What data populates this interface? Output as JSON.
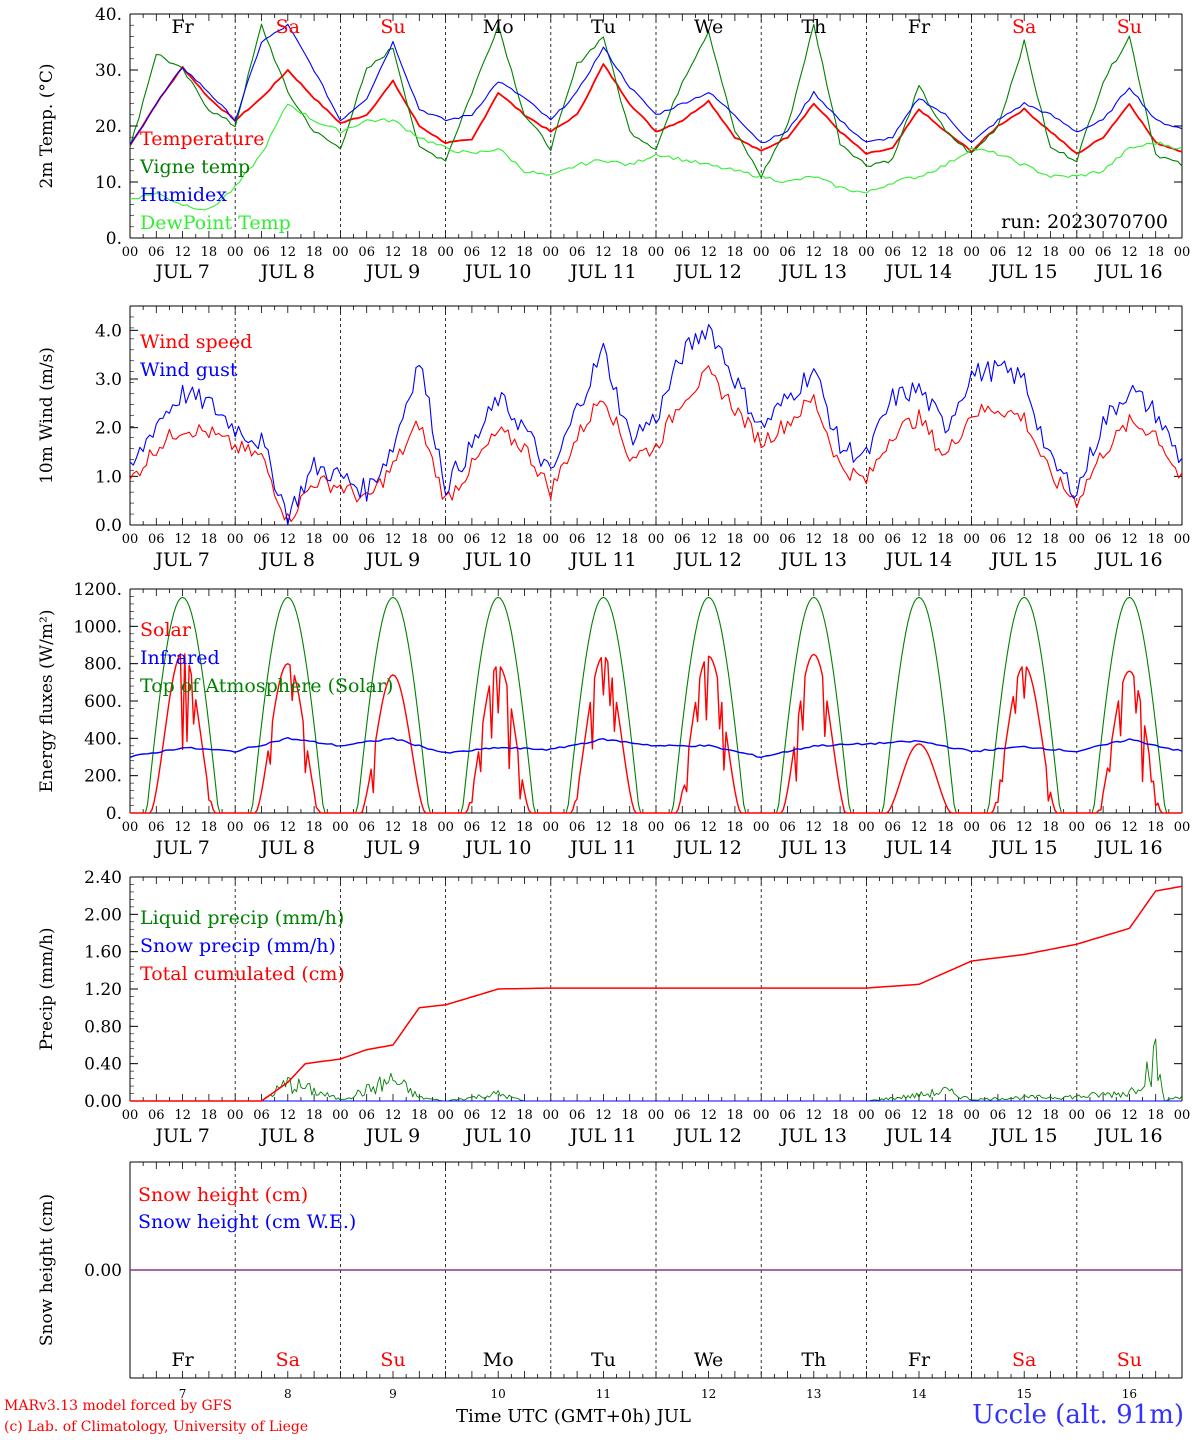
{
  "colors": {
    "red": "#ff0000",
    "green": "#008000",
    "blue": "#0000ff",
    "lightgreen": "#33ee33",
    "purple": "#6633aa",
    "station": "#3333ff"
  },
  "days": {
    "weekday": [
      "Fr",
      "Sa",
      "Su",
      "Mo",
      "Tu",
      "We",
      "Th",
      "Fr",
      "Sa",
      "Su"
    ],
    "weekday_colors": [
      "black",
      "red",
      "red",
      "black",
      "black",
      "black",
      "black",
      "black",
      "red",
      "red"
    ],
    "date_labels": [
      "JUL  7",
      "JUL  8",
      "JUL  9",
      "JUL 10",
      "JUL 11",
      "JUL 12",
      "JUL 13",
      "JUL 14",
      "JUL 15",
      "JUL 16"
    ],
    "day_numbers": [
      "7",
      "8",
      "9",
      "10",
      "11",
      "12",
      "13",
      "14",
      "15",
      "16"
    ],
    "hour_ticks": [
      "00",
      "06",
      "12",
      "18"
    ],
    "end_tick": "00"
  },
  "chart_data": [
    {
      "type": "line",
      "ylabel": "2m Temp. (°C)",
      "ylim": [
        0,
        40
      ],
      "yticks": [
        "0.",
        "10.",
        "20.",
        "30.",
        "40."
      ],
      "annotation": "run: 2023070700",
      "legend": [
        "Temperature",
        "Vigne temp",
        "Humidex",
        "DewPoint Temp"
      ],
      "x_unit": "hours since JUL 7 00 UTC",
      "series": [
        {
          "name": "Temperature",
          "color": "red",
          "x": [
            0,
            6,
            12,
            18,
            24,
            30,
            36,
            42,
            48,
            54,
            60,
            66,
            72,
            78,
            84,
            90,
            96,
            102,
            108,
            114,
            120,
            126,
            132,
            138,
            144,
            150,
            156,
            162,
            168,
            174,
            180,
            186,
            192,
            198,
            204,
            210,
            216,
            222,
            228,
            234,
            240
          ],
          "y": [
            16.5,
            24,
            30.5,
            25,
            21,
            25,
            30,
            25,
            20.5,
            22,
            28,
            20,
            17,
            17.5,
            26,
            22,
            19,
            22,
            31,
            24,
            19,
            21,
            24.5,
            18,
            15.5,
            18,
            24,
            19,
            15,
            16,
            23,
            19,
            15.5,
            20,
            23,
            19,
            15,
            18,
            24,
            17,
            15.5
          ]
        },
        {
          "name": "Vigne temp",
          "color": "green",
          "x": [
            0,
            6,
            12,
            18,
            24,
            30,
            36,
            42,
            48,
            54,
            60,
            66,
            72,
            78,
            84,
            90,
            96,
            102,
            108,
            114,
            120,
            126,
            132,
            138,
            144,
            150,
            156,
            162,
            168,
            174,
            180,
            186,
            192,
            198,
            204,
            210,
            216,
            222,
            228,
            234,
            240
          ],
          "y": [
            16,
            33,
            30,
            23,
            20,
            38,
            26,
            19,
            16,
            30,
            34,
            16,
            14,
            26,
            38,
            22,
            16,
            31,
            36,
            19,
            16,
            28,
            37,
            19,
            11,
            20,
            38,
            17,
            13,
            14,
            27,
            19,
            15,
            20,
            35,
            16,
            14,
            28,
            36,
            15,
            13
          ]
        },
        {
          "name": "Humidex",
          "color": "blue",
          "x": [
            0,
            6,
            12,
            18,
            24,
            30,
            36,
            42,
            48,
            54,
            60,
            66,
            72,
            78,
            84,
            90,
            96,
            102,
            108,
            114,
            120,
            126,
            132,
            138,
            144,
            150,
            156,
            162,
            168,
            174,
            180,
            186,
            192,
            198,
            204,
            210,
            216,
            222,
            228,
            234,
            240
          ],
          "y": [
            16.5,
            24,
            30.5,
            26,
            21,
            35,
            38,
            30,
            21,
            25,
            35,
            23,
            21,
            22,
            28,
            25,
            21,
            26,
            34,
            27,
            22,
            24,
            26,
            22,
            17,
            19,
            26,
            21,
            17,
            18,
            25,
            22,
            17,
            21,
            24,
            22,
            19,
            21,
            27,
            21,
            19.5
          ]
        },
        {
          "name": "DewPoint Temp",
          "color": "lightgreen",
          "x": [
            0,
            6,
            12,
            18,
            24,
            30,
            36,
            42,
            48,
            54,
            60,
            66,
            72,
            78,
            84,
            90,
            96,
            102,
            108,
            114,
            120,
            126,
            132,
            138,
            144,
            150,
            156,
            162,
            168,
            174,
            180,
            186,
            192,
            198,
            204,
            210,
            216,
            222,
            228,
            234,
            240
          ],
          "y": [
            7,
            8,
            6,
            5,
            9,
            15,
            24,
            21,
            19,
            21,
            21,
            18,
            16,
            15,
            16,
            12,
            11,
            13,
            14,
            13,
            15,
            14,
            13,
            12,
            11,
            10,
            11,
            9,
            8,
            10,
            11,
            13,
            16,
            15,
            13,
            11,
            11,
            12,
            16,
            17,
            16
          ]
        }
      ]
    },
    {
      "type": "line",
      "ylabel": "10m Wind (m/s)",
      "ylim": [
        0,
        4.5
      ],
      "yticks": [
        "0.0",
        "1.0",
        "2.0",
        "3.0",
        "4.0"
      ],
      "legend": [
        "Wind speed",
        "Wind gust"
      ],
      "x_unit": "hours since JUL 7 00 UTC",
      "series": [
        {
          "name": "Wind speed",
          "color": "red",
          "x": [
            0,
            6,
            12,
            18,
            24,
            30,
            36,
            42,
            48,
            54,
            60,
            66,
            72,
            78,
            84,
            90,
            96,
            102,
            108,
            114,
            120,
            126,
            132,
            138,
            144,
            150,
            156,
            162,
            168,
            174,
            180,
            186,
            192,
            198,
            204,
            210,
            216,
            222,
            228,
            234,
            240
          ],
          "y": [
            0.9,
            1.6,
            2.0,
            1.9,
            1.6,
            1.4,
            0.1,
            0.9,
            0.8,
            0.5,
            1.2,
            2.1,
            0.5,
            1.2,
            1.9,
            1.6,
            0.7,
            1.8,
            2.7,
            1.4,
            1.6,
            2.6,
            3.1,
            2.4,
            1.7,
            2.1,
            2.6,
            1.2,
            0.9,
            1.9,
            2.2,
            1.4,
            2.3,
            2.4,
            2.2,
            1.0,
            0.5,
            1.5,
            2.1,
            1.9,
            0.9
          ]
        },
        {
          "name": "Wind gust",
          "color": "blue",
          "x": [
            0,
            6,
            12,
            18,
            24,
            30,
            36,
            42,
            48,
            54,
            60,
            66,
            72,
            78,
            84,
            90,
            96,
            102,
            108,
            114,
            120,
            126,
            132,
            138,
            144,
            150,
            156,
            162,
            168,
            174,
            180,
            186,
            192,
            198,
            204,
            210,
            216,
            222,
            228,
            234,
            240
          ],
          "y": [
            1.1,
            2.1,
            2.7,
            2.5,
            2.0,
            1.7,
            0.2,
            1.2,
            1.0,
            0.7,
            1.6,
            3.4,
            0.8,
            1.6,
            2.6,
            2.0,
            1.0,
            2.4,
            3.6,
            1.8,
            2.2,
            3.5,
            4.1,
            3.0,
            2.0,
            2.6,
            3.2,
            1.6,
            1.4,
            2.6,
            2.8,
            2.0,
            3.1,
            3.2,
            3.0,
            1.3,
            0.7,
            2.1,
            2.8,
            2.3,
            1.3
          ]
        }
      ]
    },
    {
      "type": "line",
      "ylabel": "Energy fluxes (W/m²)",
      "ylim": [
        0,
        1200
      ],
      "yticks": [
        "0.",
        "200.",
        "400.",
        "600.",
        "800.",
        "1000.",
        "1200."
      ],
      "legend": [
        "Solar",
        "Infrared",
        "Top of Atmosphere (Solar)"
      ],
      "x_unit": "hours since JUL 7 00 UTC",
      "daily_peaks": {
        "Solar": [
          860,
          800,
          740,
          790,
          840,
          840,
          850,
          370,
          790,
          760
        ],
        "Top of Atmosphere (Solar)": [
          1155,
          1155,
          1155,
          1155,
          1155,
          1155,
          1155,
          1155,
          1155,
          1155
        ]
      },
      "infrared": {
        "x": [
          0,
          12,
          24,
          36,
          48,
          60,
          72,
          84,
          96,
          108,
          120,
          132,
          144,
          156,
          168,
          180,
          192,
          204,
          216,
          228,
          240
        ],
        "y": [
          300,
          350,
          330,
          400,
          360,
          400,
          320,
          350,
          340,
          395,
          360,
          360,
          300,
          360,
          370,
          385,
          330,
          355,
          330,
          395,
          330
        ]
      }
    },
    {
      "type": "line",
      "ylabel": "Precip (mm/h)",
      "ylim": [
        0,
        2.4
      ],
      "yticks": [
        "0.00",
        "0.40",
        "0.80",
        "1.20",
        "1.60",
        "2.00",
        "2.40"
      ],
      "legend": [
        "Liquid precip (mm/h)",
        "Snow precip (mm/h)",
        "Total cumulated (cm)"
      ],
      "x_unit": "hours since JUL 7 00 UTC",
      "series": [
        {
          "name": "Total cumulated (cm)",
          "color": "red",
          "x": [
            0,
            30,
            36,
            40,
            48,
            54,
            60,
            66,
            72,
            84,
            96,
            120,
            144,
            168,
            180,
            192,
            204,
            216,
            228,
            234,
            240
          ],
          "y": [
            0,
            0,
            0.2,
            0.4,
            0.45,
            0.55,
            0.6,
            1.0,
            1.03,
            1.2,
            1.21,
            1.21,
            1.21,
            1.21,
            1.25,
            1.5,
            1.57,
            1.68,
            1.85,
            2.25,
            2.3
          ]
        },
        {
          "name": "Liquid precip (mm/h)",
          "color": "green",
          "x": [
            0,
            30,
            36,
            40,
            48,
            54,
            60,
            66,
            72,
            78,
            84,
            90,
            168,
            180,
            186,
            192,
            204,
            216,
            228,
            234,
            236,
            240
          ],
          "y": [
            0,
            0,
            0.25,
            0.18,
            0.02,
            0.15,
            0.3,
            0.05,
            0,
            0.05,
            0.1,
            0,
            0,
            0.08,
            0.14,
            0.02,
            0.05,
            0.06,
            0.12,
            0.58,
            0,
            0.08
          ]
        }
      ]
    },
    {
      "type": "line",
      "ylabel": "Snow height (cm)",
      "ylim": [
        -1,
        1
      ],
      "yticks": [
        "0.00"
      ],
      "legend": [
        "Snow height (cm)",
        "Snow height (cm W.E.)"
      ],
      "x_unit": "hours since JUL 7 00 UTC",
      "series": [
        {
          "name": "Snow height (cm)",
          "color": "red",
          "x": [
            0,
            240
          ],
          "y": [
            0,
            0
          ]
        },
        {
          "name": "Snow height (cm W.E.)",
          "color": "blue",
          "x": [
            0,
            240
          ],
          "y": [
            0,
            0
          ]
        }
      ]
    }
  ],
  "footer": {
    "model_line": "MARv3.13 model forced by GFS",
    "lab_line": "(c) Lab. of Climatology, University of Liege",
    "xlabel": "Time UTC (GMT+0h) JUL",
    "station": "Uccle (alt. 91m)"
  }
}
